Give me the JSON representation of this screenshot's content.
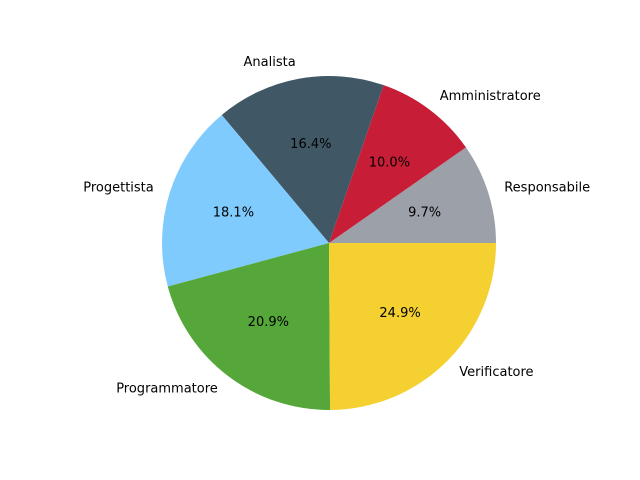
{
  "chart_data": {
    "type": "pie",
    "title": "",
    "start_angle_deg": 0,
    "direction": "counterclockwise",
    "slices": [
      {
        "label": "Responsabile",
        "value": 9.7,
        "pct_text": "9.7%",
        "color": "#9ca0a8"
      },
      {
        "label": "Amministratore",
        "value": 10.0,
        "pct_text": "10.0%",
        "color": "#c81d36"
      },
      {
        "label": "Analista",
        "value": 16.4,
        "pct_text": "16.4%",
        "color": "#405865"
      },
      {
        "label": "Progettista",
        "value": 18.1,
        "pct_text": "18.1%",
        "color": "#80cbfe"
      },
      {
        "label": "Programmatore",
        "value": 20.9,
        "pct_text": "20.9%",
        "color": "#55a73a"
      },
      {
        "label": "Verificatore",
        "value": 24.9,
        "pct_text": "24.9%",
        "color": "#f5d031"
      }
    ]
  }
}
